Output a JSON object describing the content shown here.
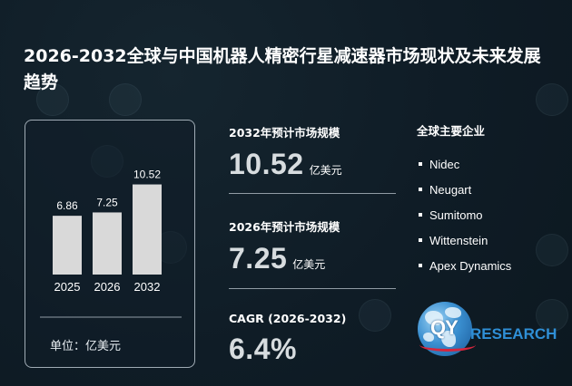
{
  "title": "2026-2032全球与中国机器人精密行星减速器市场现状及未来发展趋势",
  "chart_data": {
    "type": "bar",
    "categories": [
      "2025",
      "2026",
      "2032"
    ],
    "values": [
      6.86,
      7.25,
      10.52
    ],
    "value_labels": [
      "6.86",
      "7.25",
      "10.52"
    ],
    "unit_label": "单位：亿美元",
    "bar_color": "#d9d9d9",
    "ylim": [
      0,
      11
    ],
    "grid": false
  },
  "stats": [
    {
      "label": "2032年预计市场规模",
      "value": "10.52",
      "unit": "亿美元"
    },
    {
      "label": "2026年预计市场规模",
      "value": "7.25",
      "unit": "亿美元"
    },
    {
      "label": "CAGR (2026-2032)",
      "value": "6.4%",
      "unit": ""
    }
  ],
  "companies": {
    "title": "全球主要企业",
    "items": [
      "Nidec",
      "Neugart",
      "Sumitomo",
      "Wittenstein",
      "Apex Dynamics"
    ]
  },
  "logo": {
    "text_q": "QY",
    "text_word": "RESEARCH",
    "icon": "globe-icon"
  },
  "colors": {
    "background": "#0f1c26",
    "bar": "#d9d9d9",
    "stat_value": "#d7dcdf",
    "logo_blue": "#2f8fd6",
    "logo_red": "#d7263d"
  }
}
